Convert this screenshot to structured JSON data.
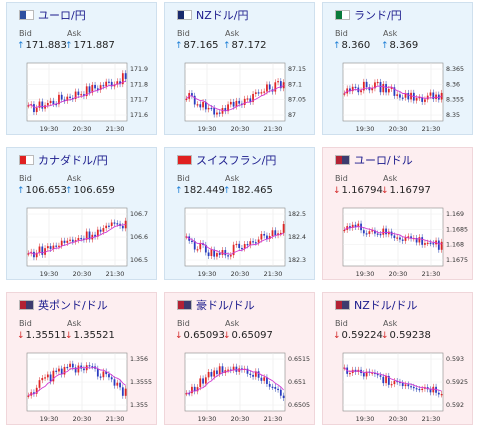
{
  "labels": {
    "bid": "Bid",
    "ask": "Ask"
  },
  "panels": [
    {
      "title": "ユーロ/円",
      "bid": "171.883",
      "ask": "171.887",
      "bid_dir": "up",
      "ask_dir": "up",
      "bg": "blue",
      "flag": {
        "a": "#2f4f9f",
        "b": "#ffffff"
      },
      "yticks": [
        "171.9",
        "171.8",
        "171.7",
        "171.6"
      ],
      "xticks": [
        "19:30",
        "20:30",
        "21:30"
      ],
      "trend": "up"
    },
    {
      "title": "NZドル/円",
      "bid": "87.165",
      "ask": "87.172",
      "bid_dir": "up",
      "ask_dir": "up",
      "bg": "blue",
      "flag": {
        "a": "#1a2a6c",
        "b": "#ffffff"
      },
      "yticks": [
        "87.15",
        "87.1",
        "87.05",
        "87"
      ],
      "xticks": [
        "19:30",
        "20:30",
        "21:30"
      ],
      "trend": "vup"
    },
    {
      "title": "ランド/円",
      "bid": "8.360",
      "ask": "8.369",
      "bid_dir": "up",
      "ask_dir": "up",
      "bg": "blue",
      "flag": {
        "a": "#0a7a3a",
        "b": "#ffffff"
      },
      "yticks": [
        "8.365",
        "8.36",
        "8.355",
        "8.35"
      ],
      "xticks": [
        "19:30",
        "20:30",
        "21:30"
      ],
      "trend": "flat"
    },
    {
      "title": "カナダドル/円",
      "bid": "106.653",
      "ask": "106.659",
      "bid_dir": "up",
      "ask_dir": "up",
      "bg": "blue",
      "flag": {
        "a": "#e02020",
        "b": "#ffffff"
      },
      "yticks": [
        "106.7",
        "106.6",
        "106.5"
      ],
      "xticks": [
        "19:30",
        "20:30",
        "21:30"
      ],
      "trend": "up"
    },
    {
      "title": "スイスフラン/円",
      "bid": "182.449",
      "ask": "182.465",
      "bid_dir": "up",
      "ask_dir": "up",
      "bg": "blue",
      "flag": {
        "a": "#e02020",
        "b": "#e02020"
      },
      "yticks": [
        "182.5",
        "182.4",
        "182.3"
      ],
      "xticks": [
        "19:30",
        "20:30",
        "21:30"
      ],
      "trend": "vup"
    },
    {
      "title": "ユーロ/ドル",
      "bid": "1.16794",
      "ask": "1.16797",
      "bid_dir": "down",
      "ask_dir": "down",
      "bg": "pink",
      "flag": {
        "a": "#b22234",
        "b": "#3c3b6e"
      },
      "yticks": [
        "1.169",
        "1.1685",
        "1.168",
        "1.1675"
      ],
      "xticks": [
        "19:30",
        "20:30",
        "21:30"
      ],
      "trend": "down"
    },
    {
      "title": "英ポンド/ドル",
      "bid": "1.35511",
      "ask": "1.35521",
      "bid_dir": "down",
      "ask_dir": "down",
      "bg": "pink",
      "flag": {
        "a": "#b22234",
        "b": "#3c3b6e"
      },
      "yticks": [
        "1.356",
        "1.3555",
        "1.355"
      ],
      "xticks": [
        "19:30",
        "20:30",
        "21:30"
      ],
      "trend": "hill"
    },
    {
      "title": "豪ドル/ドル",
      "bid": "0.65093",
      "ask": "0.65097",
      "bid_dir": "down",
      "ask_dir": "down",
      "bg": "pink",
      "flag": {
        "a": "#b22234",
        "b": "#3c3b6e"
      },
      "yticks": [
        "0.6515",
        "0.651",
        "0.6505"
      ],
      "xticks": [
        "19:30",
        "20:30",
        "21:30"
      ],
      "trend": "hill"
    },
    {
      "title": "NZドル/ドル",
      "bid": "0.59224",
      "ask": "0.59238",
      "bid_dir": "down",
      "ask_dir": "down",
      "bg": "pink",
      "flag": {
        "a": "#b22234",
        "b": "#3c3b6e"
      },
      "yticks": [
        "0.593",
        "0.5925",
        "0.592"
      ],
      "xticks": [
        "19:30",
        "20:30",
        "21:30"
      ],
      "trend": "down"
    }
  ]
}
